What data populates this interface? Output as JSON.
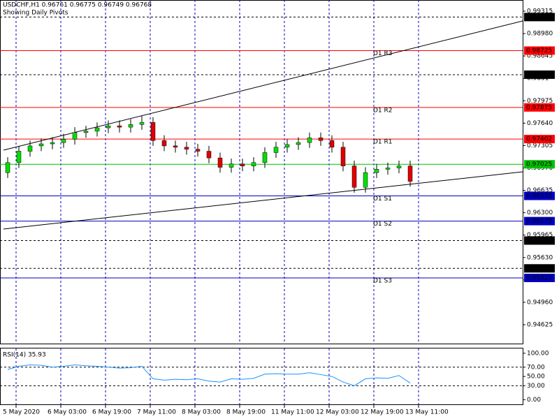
{
  "chart_data": {
    "type": "candlestick",
    "header": "USDCHF,H1  0.96761 0.96775 0.96749 0.96768",
    "subtitle": "Showing Daily Pivots",
    "up_color": "#00e000",
    "down_color": "#e00000",
    "x": [
      2,
      6,
      10,
      14,
      18,
      22,
      26,
      30,
      34,
      38,
      42,
      46,
      50,
      54,
      58,
      62,
      66,
      70,
      74,
      78,
      82,
      86,
      90,
      94,
      98,
      102,
      106,
      110,
      114,
      118,
      122,
      126,
      130,
      134,
      138,
      142,
      146
    ],
    "open": [
      0.969,
      0.9705,
      0.9722,
      0.973,
      0.9733,
      0.9735,
      0.974,
      0.975,
      0.9752,
      0.9757,
      0.976,
      0.9758,
      0.9762,
      0.9765,
      0.9738,
      0.973,
      0.9728,
      0.9725,
      0.9722,
      0.9712,
      0.9698,
      0.9703,
      0.97,
      0.9705,
      0.972,
      0.9728,
      0.9732,
      0.9735,
      0.9742,
      0.9738,
      0.9728,
      0.97,
      0.9668,
      0.969,
      0.9695,
      0.9697,
      0.97
    ],
    "high": [
      0.9713,
      0.973,
      0.9738,
      0.9741,
      0.9743,
      0.9748,
      0.9758,
      0.976,
      0.9765,
      0.9768,
      0.9768,
      0.977,
      0.9775,
      0.9773,
      0.9746,
      0.9738,
      0.9736,
      0.9733,
      0.973,
      0.972,
      0.9711,
      0.9711,
      0.9713,
      0.9728,
      0.9736,
      0.974,
      0.9743,
      0.975,
      0.975,
      0.9746,
      0.9736,
      0.9708,
      0.9698,
      0.9703,
      0.9705,
      0.9708,
      0.9708
    ],
    "low": [
      0.9682,
      0.9697,
      0.9714,
      0.9722,
      0.9725,
      0.9727,
      0.9732,
      0.9742,
      0.9744,
      0.9749,
      0.975,
      0.975,
      0.9754,
      0.973,
      0.9722,
      0.972,
      0.9717,
      0.9714,
      0.9704,
      0.969,
      0.969,
      0.9692,
      0.9692,
      0.9697,
      0.9712,
      0.972,
      0.9724,
      0.9727,
      0.973,
      0.972,
      0.9692,
      0.966,
      0.966,
      0.9682,
      0.9687,
      0.9689,
      0.9669
    ],
    "close": [
      0.9705,
      0.9722,
      0.973,
      0.9733,
      0.9735,
      0.974,
      0.975,
      0.9752,
      0.9757,
      0.976,
      0.9758,
      0.9762,
      0.9765,
      0.9738,
      0.973,
      0.9728,
      0.9725,
      0.9722,
      0.9712,
      0.9698,
      0.9703,
      0.97,
      0.9705,
      0.972,
      0.9728,
      0.9732,
      0.9735,
      0.9742,
      0.9738,
      0.9728,
      0.97,
      0.9668,
      0.969,
      0.9695,
      0.9697,
      0.97,
      0.9677
    ],
    "xlim": [
      -0.75,
      186.25
    ],
    "xticks": [
      {
        "value": 0,
        "label": "5 May 2020"
      },
      {
        "value": 16,
        "label": "6 May 03:00"
      },
      {
        "value": 32,
        "label": "6 May 19:00"
      },
      {
        "value": 48,
        "label": "7 May 11:00"
      },
      {
        "value": 64,
        "label": "8 May 03:00"
      },
      {
        "value": 80,
        "label": "8 May 19:00"
      },
      {
        "value": 96,
        "label": "11 May 11:00"
      },
      {
        "value": 112,
        "label": "12 May 03:00"
      },
      {
        "value": 128,
        "label": "12 May 19:00"
      },
      {
        "value": 144,
        "label": "13 May 11:00"
      }
    ],
    "ylim": [
      0.94343,
      0.99482
    ],
    "yticks": [
      0.99315,
      {
        "value": 0.9898,
        "label": "0.98980"
      },
      0.98645,
      0.9831,
      0.97975,
      {
        "value": 0.9764,
        "label": "0.97640"
      },
      0.97305,
      {
        "value": 0.9697,
        "label": "0.96970"
      },
      0.96635,
      {
        "value": 0.963,
        "label": "0.96300"
      },
      0.95965,
      {
        "value": 0.9563,
        "label": "0.95630"
      },
      0.95295,
      {
        "value": 0.9496,
        "label": "0.94960"
      },
      0.94625
    ],
    "levels": [
      {
        "value": 0.99227,
        "color": "#000000",
        "style": "dashed"
      },
      {
        "value": 0.98725,
        "color": "#ff0000",
        "style": "solid",
        "name": "D1 R3"
      },
      {
        "value": 0.98365,
        "color": "#000000",
        "style": "dashed"
      },
      {
        "value": 0.97875,
        "color": "#ff0000",
        "style": "solid",
        "name": "D1 R2"
      },
      {
        "value": 0.97402,
        "color": "#ff0000",
        "style": "solid",
        "name": "D1 R1"
      },
      {
        "value": 0.97025,
        "color": "#00c000",
        "style": "solid"
      },
      {
        "value": 0.96552,
        "color": "#0000c0",
        "style": "solid",
        "name": "D1 S1"
      },
      {
        "value": 0.96175,
        "color": "#0000c0",
        "style": "solid",
        "name": "D1 S2"
      },
      {
        "value": 0.95884,
        "color": "#000000",
        "style": "dashed"
      },
      {
        "value": 0.95468,
        "color": "#000000",
        "style": "dashed"
      },
      {
        "value": 0.95325,
        "color": "#0000c0",
        "style": "solid",
        "name": "D1 S3"
      }
    ],
    "trendlines": [
      {
        "x": [
          0.5,
          186.25
        ],
        "y": [
          0.97236,
          0.99169
        ]
      },
      {
        "x": [
          0.5,
          186.25
        ],
        "y": [
          0.96056,
          0.96912
        ]
      }
    ],
    "rsi": {
      "label": "RSI(14) 35.93",
      "color": "#1e90ff",
      "values": [
        65,
        72,
        75,
        74,
        70,
        72,
        75,
        73,
        72,
        70,
        68,
        69,
        72,
        45,
        42,
        44,
        43,
        45,
        40,
        38,
        45,
        44,
        46,
        55,
        56,
        55,
        55,
        58,
        54,
        50,
        38,
        30,
        45,
        47,
        46,
        52,
        35.93
      ],
      "ylim": [
        -10,
        110.3
      ],
      "yticks": [
        {
          "value": 100,
          "label": "100.00"
        },
        {
          "value": 70,
          "label": "70.00"
        },
        {
          "value": 50,
          "label": "50.00"
        },
        {
          "value": 30,
          "label": "30.00"
        },
        {
          "value": 0,
          "label": "0.00"
        }
      ],
      "levels": [
        70,
        30
      ]
    }
  }
}
